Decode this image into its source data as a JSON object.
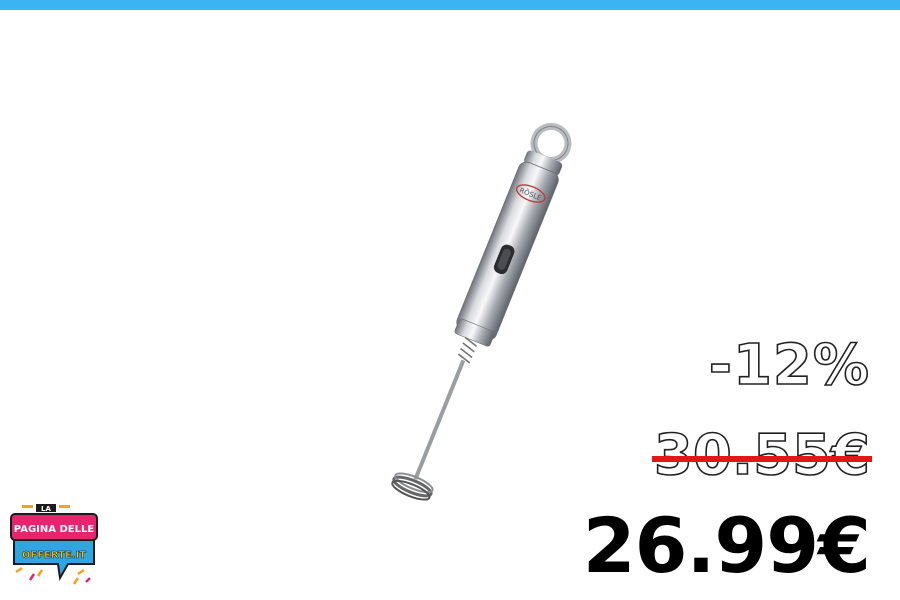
{
  "offer": {
    "discount": "-12%",
    "old_price": "30.55€",
    "new_price": "26.99€"
  },
  "logo": {
    "line1": "LA",
    "line2": "PAGINA DELLE",
    "line3": "OFFERTE.IT"
  },
  "product": {
    "brand_mark": "RÖSLE"
  },
  "colors": {
    "top_bar": "#3db4f2",
    "strike": "#e6141b",
    "logo_pink": "#e8246e",
    "logo_blue": "#2fa6e0"
  }
}
